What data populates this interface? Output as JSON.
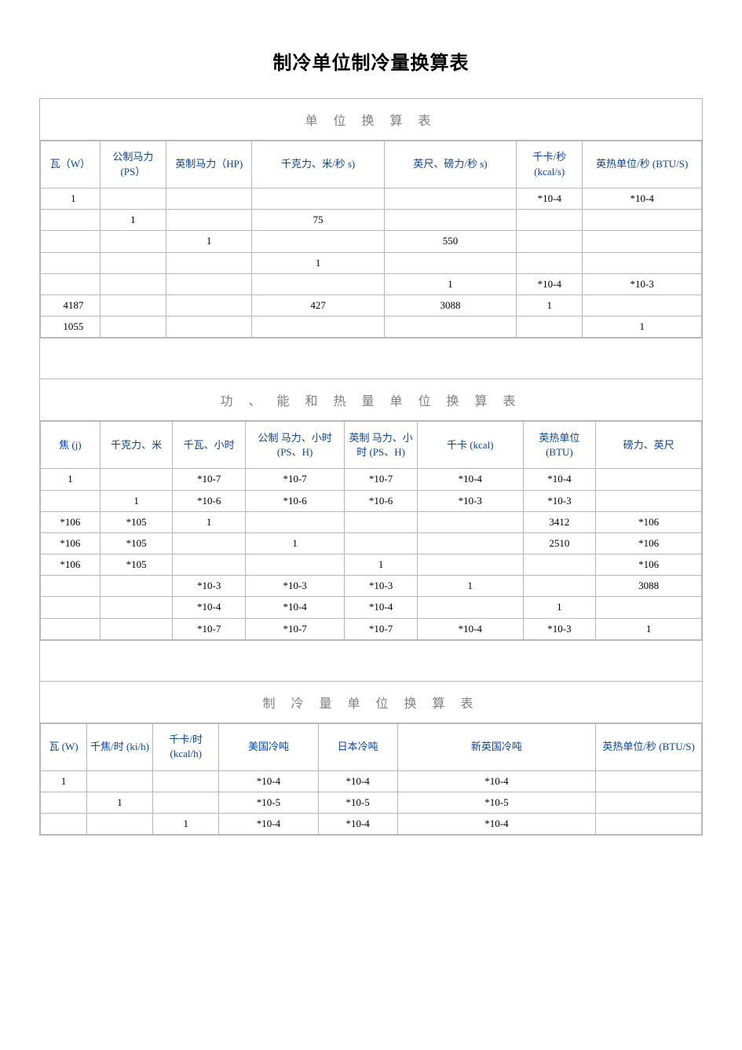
{
  "page": {
    "title": "制冷单位制冷量换算表"
  },
  "table1": {
    "heading": "单 位 换 算 表",
    "col_widths": [
      "9%",
      "10%",
      "13%",
      "20%",
      "20%",
      "10%",
      "18%"
    ],
    "columns": [
      "瓦（W）",
      "公制马力 (PS）",
      "英制马力（HP)",
      "千克力、米/秒 s)",
      "英尺、磅力/秒 s)",
      "千卡/秒 (kcal/s)",
      "英热单位/秒 (BTU/S)"
    ],
    "rows": [
      [
        "1",
        "",
        "",
        "",
        "",
        "*10-4",
        "*10-4"
      ],
      [
        "",
        "1",
        "",
        "75",
        "",
        "",
        ""
      ],
      [
        "",
        "",
        "1",
        "",
        "550",
        "",
        ""
      ],
      [
        "",
        "",
        "",
        "1",
        "",
        "",
        ""
      ],
      [
        "",
        "",
        "",
        "",
        "1",
        "*10-4",
        "*10-3"
      ],
      [
        "4187",
        "",
        "",
        "427",
        "3088",
        "1",
        ""
      ],
      [
        "1055",
        "",
        "",
        "",
        "",
        "",
        "1"
      ]
    ]
  },
  "table2": {
    "heading": "功 、 能 和 热 量 单 位 换 算 表",
    "col_widths": [
      "9%",
      "11%",
      "11%",
      "15%",
      "11%",
      "16%",
      "11%",
      "16%"
    ],
    "columns": [
      "焦 (j)",
      "千克力、米",
      "千瓦、小时",
      "公制 马力、小时(PS、H)",
      "英制 马力、小时 (PS、H)",
      "千卡 (kcal)",
      "英热单位 (BTU)",
      "磅力、英尺"
    ],
    "rows": [
      [
        "1",
        "",
        "*10-7",
        "*10-7",
        "*10-7",
        "*10-4",
        "*10-4",
        ""
      ],
      [
        "",
        "1",
        "*10-6",
        "*10-6",
        "*10-6",
        "*10-3",
        "*10-3",
        ""
      ],
      [
        "*106",
        "*105",
        "1",
        "",
        "",
        "",
        "3412",
        "*106"
      ],
      [
        "*106",
        "*105",
        "",
        "1",
        "",
        "",
        "2510",
        "*106"
      ],
      [
        "*106",
        "*105",
        "",
        "",
        "1",
        "",
        "",
        "*106"
      ],
      [
        "",
        "",
        "*10-3",
        "*10-3",
        "*10-3",
        "1",
        "",
        "3088"
      ],
      [
        "",
        "",
        "*10-4",
        "*10-4",
        "*10-4",
        "",
        "1",
        ""
      ],
      [
        "",
        "",
        "*10-7",
        "*10-7",
        "*10-7",
        "*10-4",
        "*10-3",
        "1"
      ]
    ]
  },
  "table3": {
    "heading": "制 冷 量 单 位 换 算 表",
    "col_widths": [
      "7%",
      "10%",
      "10%",
      "15%",
      "12%",
      "30%",
      "16%"
    ],
    "columns": [
      "瓦 (W)",
      "千焦/时 (ki/h)",
      "千卡/时 (kcal/h)",
      "美国冷吨",
      "日本冷吨",
      "新英国冷吨",
      "英热单位/秒 (BTU/S)"
    ],
    "rows": [
      [
        "1",
        "",
        "",
        "*10-4",
        "*10-4",
        "*10-4",
        ""
      ],
      [
        "",
        "1",
        "",
        "*10-5",
        "*10-5",
        "*10-5",
        ""
      ],
      [
        "",
        "",
        "1",
        "*10-4",
        "*10-4",
        "*10-4",
        ""
      ]
    ]
  },
  "style": {
    "header_color": "#0645ad",
    "border_color": "#b8b8b8",
    "section_header_color": "#808080",
    "background": "#ffffff",
    "body_text_color": "#000000"
  }
}
